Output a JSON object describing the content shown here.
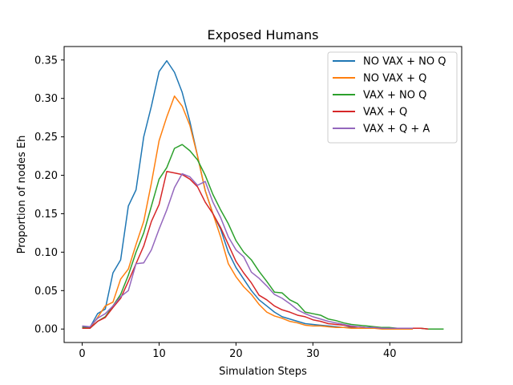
{
  "chart_data": {
    "type": "line",
    "title": "Exposed Humans",
    "xlabel": "Simulation Steps",
    "ylabel": "Proportion of nodes Eh",
    "xlim": [
      -2.35,
      49.35
    ],
    "ylim": [
      -0.0175,
      0.3675
    ],
    "xticks": [
      0,
      10,
      20,
      30,
      40
    ],
    "yticks": [
      0.0,
      0.05,
      0.1,
      0.15,
      0.2,
      0.25,
      0.3,
      0.35
    ],
    "ytick_labels": [
      "0.00",
      "0.05",
      "0.10",
      "0.15",
      "0.20",
      "0.25",
      "0.30",
      "0.35"
    ],
    "legend_position": "top-right",
    "grid": false,
    "series": [
      {
        "name": "NO VAX + NO Q",
        "color": "#1f77b4",
        "values": [
          0.003,
          0.002,
          0.02,
          0.026,
          0.073,
          0.09,
          0.16,
          0.181,
          0.25,
          0.29,
          0.335,
          0.349,
          0.334,
          0.308,
          0.27,
          0.225,
          0.18,
          0.15,
          0.13,
          0.1,
          0.08,
          0.065,
          0.05,
          0.038,
          0.03,
          0.022,
          0.016,
          0.013,
          0.01,
          0.007,
          0.006,
          0.005,
          0.004,
          0.003,
          0.002,
          0.002,
          0.001,
          0.001,
          0.001,
          0.001,
          0.0,
          0.0,
          0.0,
          0.0
        ]
      },
      {
        "name": "NO VAX + Q",
        "color": "#ff7f0e",
        "values": [
          0.002,
          0.001,
          0.015,
          0.03,
          0.035,
          0.065,
          0.078,
          0.11,
          0.14,
          0.19,
          0.245,
          0.276,
          0.303,
          0.29,
          0.265,
          0.225,
          0.18,
          0.15,
          0.12,
          0.085,
          0.068,
          0.055,
          0.045,
          0.032,
          0.022,
          0.017,
          0.014,
          0.01,
          0.008,
          0.005,
          0.004,
          0.004,
          0.003,
          0.002,
          0.002,
          0.001,
          0.001,
          0.001,
          0.001,
          0.0,
          0.0,
          0.0,
          0.0,
          0.0
        ]
      },
      {
        "name": "VAX + NO Q",
        "color": "#2ca02c",
        "values": [
          0.002,
          0.001,
          0.01,
          0.016,
          0.03,
          0.045,
          0.07,
          0.1,
          0.125,
          0.16,
          0.195,
          0.21,
          0.235,
          0.24,
          0.232,
          0.22,
          0.2,
          0.175,
          0.155,
          0.137,
          0.115,
          0.1,
          0.09,
          0.075,
          0.062,
          0.048,
          0.047,
          0.038,
          0.033,
          0.022,
          0.02,
          0.018,
          0.013,
          0.011,
          0.008,
          0.006,
          0.005,
          0.004,
          0.003,
          0.002,
          0.002,
          0.001,
          0.001,
          0.001,
          0.001,
          0.0,
          0.0,
          0.0
        ]
      },
      {
        "name": "VAX + Q",
        "color": "#d62728",
        "values": [
          0.001,
          0.001,
          0.01,
          0.015,
          0.028,
          0.04,
          0.062,
          0.085,
          0.108,
          0.14,
          0.162,
          0.205,
          0.203,
          0.201,
          0.195,
          0.185,
          0.165,
          0.15,
          0.132,
          0.11,
          0.088,
          0.073,
          0.06,
          0.044,
          0.038,
          0.03,
          0.025,
          0.022,
          0.018,
          0.016,
          0.012,
          0.01,
          0.007,
          0.006,
          0.005,
          0.003,
          0.003,
          0.002,
          0.002,
          0.001,
          0.001,
          0.001,
          0.001,
          0.001,
          0.001,
          0.0
        ]
      },
      {
        "name": "VAX + Q + A",
        "color": "#9467bd",
        "values": [
          0.004,
          0.003,
          0.014,
          0.02,
          0.03,
          0.042,
          0.05,
          0.085,
          0.086,
          0.103,
          0.13,
          0.155,
          0.184,
          0.202,
          0.198,
          0.187,
          0.192,
          0.165,
          0.145,
          0.12,
          0.103,
          0.094,
          0.074,
          0.066,
          0.056,
          0.045,
          0.04,
          0.033,
          0.025,
          0.02,
          0.016,
          0.013,
          0.01,
          0.008,
          0.006,
          0.004,
          0.003,
          0.002,
          0.002,
          0.001,
          0.001,
          0.001,
          0.001,
          0.001
        ]
      }
    ]
  }
}
